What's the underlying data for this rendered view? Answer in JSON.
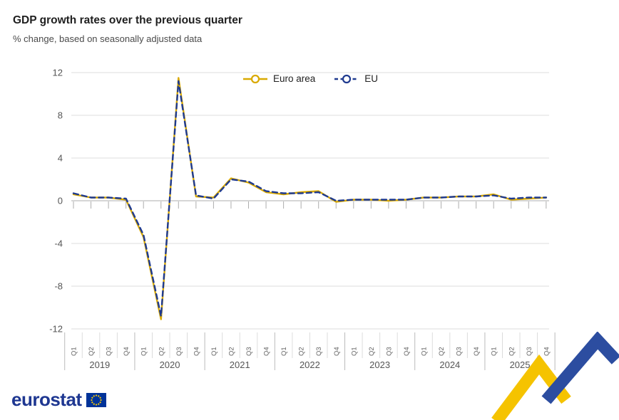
{
  "page": {
    "title": "GDP growth rates over the previous quarter",
    "subtitle": "% change, based on seasonally adjusted data"
  },
  "footer": {
    "logo_text": "eurostat"
  },
  "colors": {
    "euro_area": "#D9A900",
    "eu": "#1F3A8F",
    "logo_blue": "#1E3791",
    "flag_blue": "#003399",
    "flag_stars": "#FFCC00",
    "ribbon_yellow": "#F5C300",
    "ribbon_blue": "#2C4DA0"
  },
  "chart_data": {
    "type": "line",
    "title": "GDP growth rates over the previous quarter",
    "subtitle": "% change, based on seasonally adjusted data",
    "ylim": [
      -12,
      12
    ],
    "yticks": [
      -12,
      -8,
      -4,
      0,
      4,
      8,
      12
    ],
    "grid": "horizontal",
    "legend_position": "top-center",
    "quarters": [
      "Q1",
      "Q2",
      "Q3",
      "Q4"
    ],
    "years": [
      "2019",
      "2020",
      "2021",
      "2022",
      "2023",
      "2024",
      "2025"
    ],
    "series": [
      {
        "name": "Euro area",
        "color": "#D9A900",
        "style": "solid",
        "values": [
          0.6,
          0.3,
          0.3,
          0.1,
          -3.4,
          -11.1,
          11.5,
          0.4,
          0.3,
          2.1,
          1.7,
          0.8,
          0.6,
          0.8,
          0.9,
          -0.1,
          0.1,
          0.1,
          0.0,
          0.1,
          0.3,
          0.3,
          0.4,
          0.4,
          0.6,
          0.1,
          0.2,
          0.3
        ]
      },
      {
        "name": "EU",
        "color": "#1F3A8F",
        "style": "dashed",
        "values": [
          0.7,
          0.3,
          0.3,
          0.2,
          -3.2,
          -10.8,
          11.2,
          0.5,
          0.2,
          2.0,
          1.8,
          0.9,
          0.7,
          0.7,
          0.8,
          0.0,
          0.1,
          0.1,
          0.1,
          0.1,
          0.3,
          0.3,
          0.4,
          0.4,
          0.5,
          0.2,
          0.3,
          0.3
        ]
      }
    ]
  }
}
